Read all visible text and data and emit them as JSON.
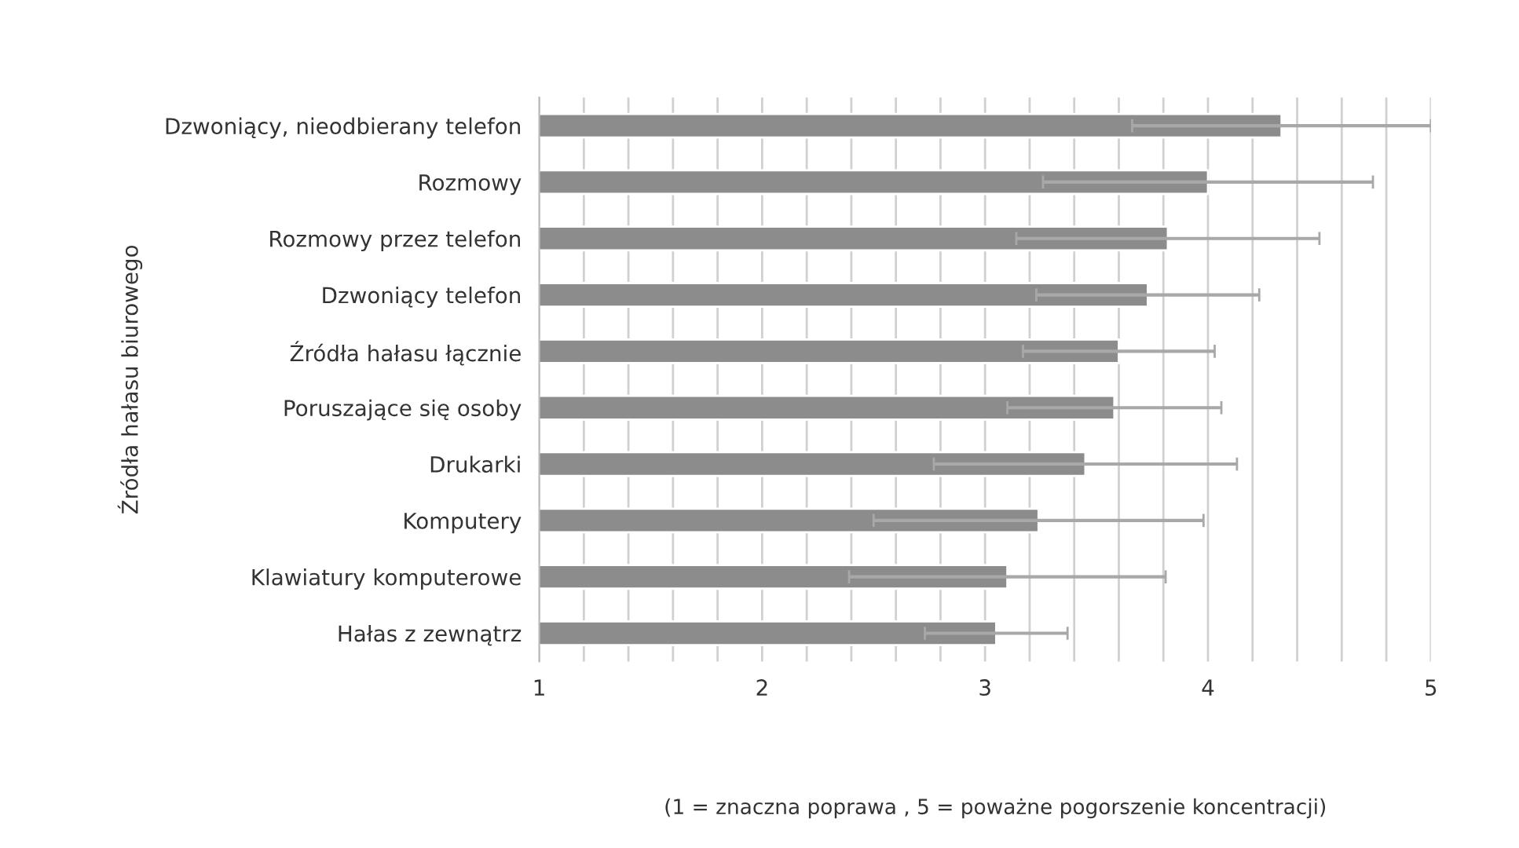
{
  "chart_data": {
    "type": "bar",
    "orientation": "horizontal",
    "ylabel": "Źródła hałasu biurowego",
    "categories": [
      "Dzwoniący, nieodbierany telefon",
      "Rozmowy",
      "Rozmowy przez telefon",
      "Dzwoniący telefon",
      "Źródła hałasu łącznie",
      "Poruszające się osoby",
      "Drukarki",
      "Komputery",
      "Klawiatury komputerowe",
      "Hałas z zewnątrz"
    ],
    "values": [
      4.33,
      4.0,
      3.82,
      3.73,
      3.6,
      3.58,
      3.45,
      3.24,
      3.1,
      3.05
    ],
    "errors": [
      0.67,
      0.74,
      0.68,
      0.5,
      0.43,
      0.48,
      0.68,
      0.74,
      0.71,
      0.32
    ],
    "color": "#8c8c8c",
    "xlim": [
      1,
      5
    ],
    "xticks": [
      1,
      {
        "value": 1.2,
        "label": null
      },
      {
        "value": 1.4,
        "label": null
      },
      {
        "value": 1.6,
        "label": null
      },
      {
        "value": 1.8,
        "label": null
      },
      2,
      {
        "value": 2.2,
        "label": null
      },
      {
        "value": 2.4,
        "label": null
      },
      {
        "value": 2.6,
        "label": null
      },
      {
        "value": 2.8,
        "label": null
      },
      3,
      {
        "value": 3.2,
        "label": null
      },
      {
        "value": 3.4,
        "label": null
      },
      {
        "value": 3.6,
        "label": null
      },
      {
        "value": 3.8,
        "label": null
      },
      4,
      {
        "value": 4.2,
        "label": null
      },
      {
        "value": 4.4,
        "label": null
      },
      {
        "value": 4.6,
        "label": null
      },
      {
        "value": 4.8,
        "label": null
      },
      5
    ],
    "grid": "x",
    "annotations": [
      "(1 = znaczna poprawa , 5 = poważne pogorszenie koncentracji)"
    ]
  }
}
